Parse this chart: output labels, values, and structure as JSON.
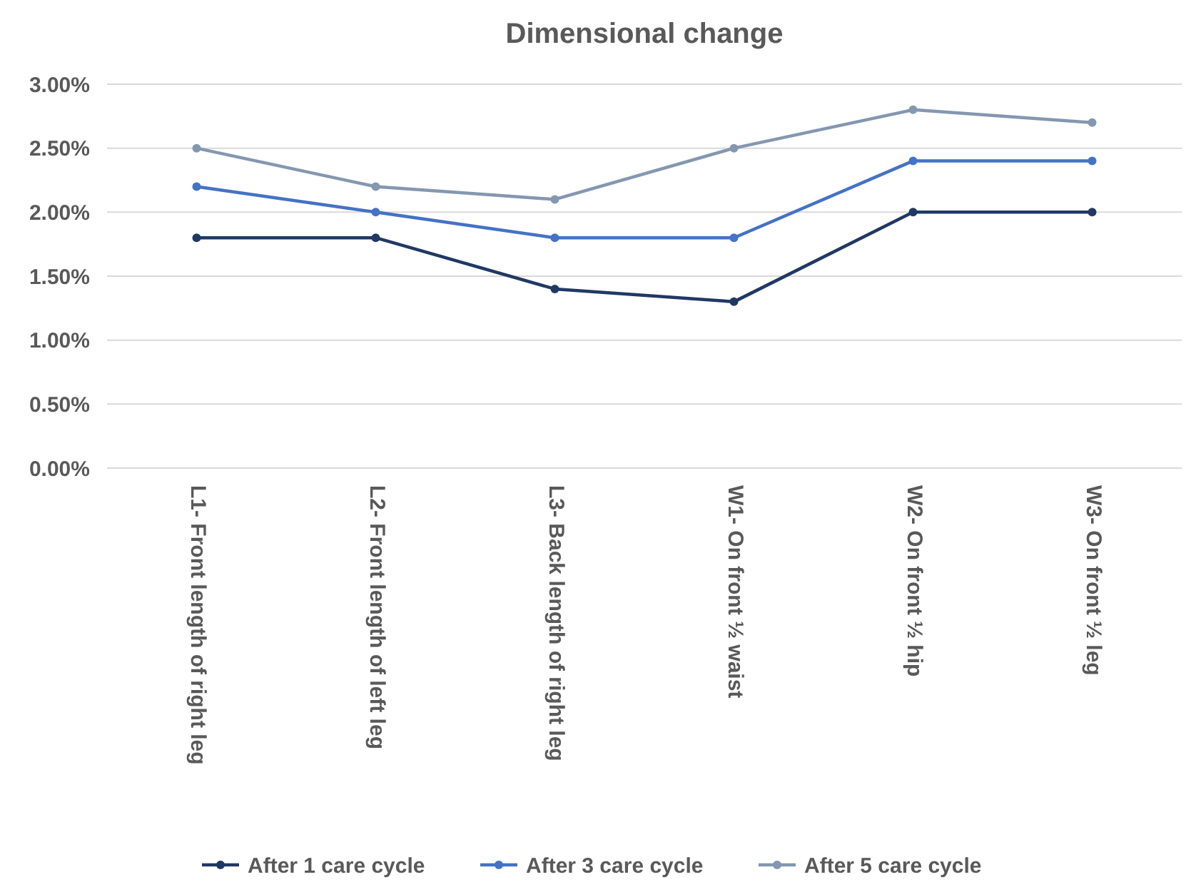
{
  "chart_data": {
    "type": "line",
    "title": "Dimensional change",
    "categories": [
      "L1- Front length of right leg",
      "L2- Front length of left leg",
      "L3- Back length of right leg",
      "W1- On front ½ waist",
      "W2- On front ½ hip",
      "W3- On front ½ leg"
    ],
    "series": [
      {
        "name": "After 1 care cycle",
        "color": "#203864",
        "values": [
          1.8,
          1.8,
          1.4,
          1.3,
          2.0,
          2.0
        ]
      },
      {
        "name": "After 3 care cycle",
        "color": "#4472c4",
        "values": [
          2.2,
          2.0,
          1.8,
          1.8,
          2.4,
          2.4
        ]
      },
      {
        "name": "After 5 care cycle",
        "color": "#8497b0",
        "values": [
          2.5,
          2.2,
          2.1,
          2.5,
          2.8,
          2.7
        ]
      }
    ],
    "ylim": [
      0,
      3
    ],
    "yticks": [
      {
        "value": 0,
        "label": "0.00%"
      },
      {
        "value": 0.5,
        "label": "0.50%"
      },
      {
        "value": 1,
        "label": "1.00%"
      },
      {
        "value": 1.5,
        "label": "1.50%"
      },
      {
        "value": 2,
        "label": "2.00%"
      },
      {
        "value": 2.5,
        "label": "2.50%"
      },
      {
        "value": 3,
        "label": "3.00%"
      }
    ],
    "grid": "y",
    "legend": "bottom",
    "marker": "circle",
    "line_style": "solid"
  }
}
